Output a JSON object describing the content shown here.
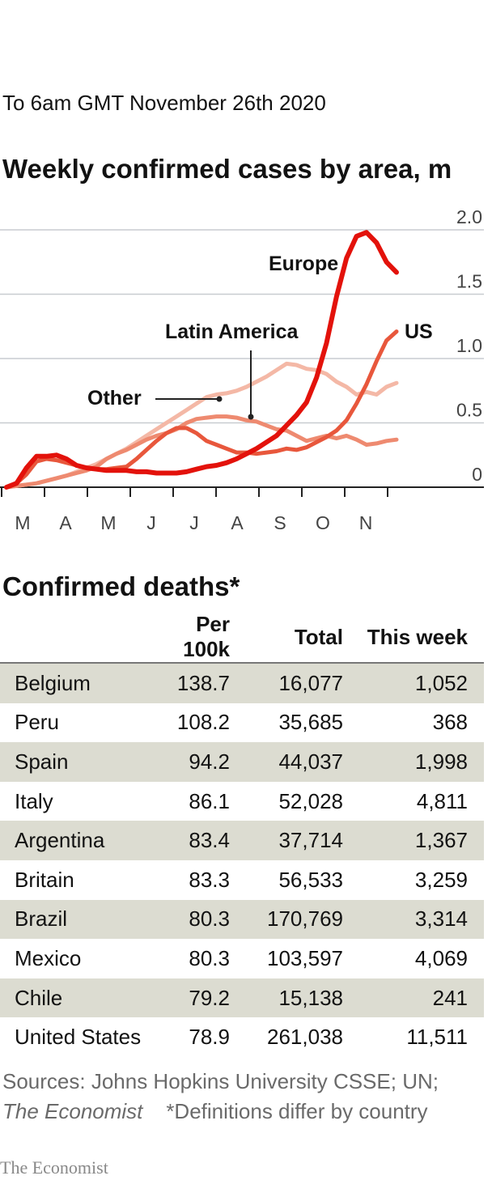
{
  "header": {
    "date": "To 6am GMT November 26th 2020"
  },
  "chart_data": {
    "type": "line",
    "title": "Weekly confirmed cases by area, m",
    "xlabel": "",
    "ylabel": "",
    "ylim": [
      0,
      2.0
    ],
    "yticks": [
      "0",
      "0.5",
      "1.0",
      "1.5",
      "2.0"
    ],
    "x_ticks": [
      "M",
      "A",
      "M",
      "J",
      "J",
      "A",
      "S",
      "O",
      "N"
    ],
    "grid": true,
    "week_index_start": 0,
    "series": [
      {
        "name": "Other",
        "color": "#f4b8a6",
        "values": [
          0.0,
          0.01,
          0.02,
          0.03,
          0.05,
          0.07,
          0.09,
          0.12,
          0.15,
          0.18,
          0.22,
          0.26,
          0.3,
          0.35,
          0.4,
          0.45,
          0.5,
          0.55,
          0.6,
          0.65,
          0.7,
          0.72,
          0.73,
          0.75,
          0.78,
          0.82,
          0.86,
          0.91,
          0.96,
          0.95,
          0.92,
          0.91,
          0.88,
          0.82,
          0.78,
          0.72,
          0.74,
          0.72,
          0.78,
          0.81
        ]
      },
      {
        "name": "Latin America",
        "color": "#ee8a70",
        "values": [
          0.0,
          0.01,
          0.02,
          0.03,
          0.05,
          0.07,
          0.09,
          0.11,
          0.13,
          0.16,
          0.22,
          0.26,
          0.29,
          0.33,
          0.37,
          0.4,
          0.42,
          0.45,
          0.5,
          0.53,
          0.54,
          0.55,
          0.55,
          0.54,
          0.52,
          0.51,
          0.48,
          0.45,
          0.44,
          0.4,
          0.36,
          0.38,
          0.4,
          0.38,
          0.4,
          0.37,
          0.33,
          0.34,
          0.36,
          0.37
        ]
      },
      {
        "name": "US",
        "color": "#e8573c",
        "values": [
          0.0,
          0.03,
          0.1,
          0.2,
          0.22,
          0.21,
          0.19,
          0.17,
          0.15,
          0.14,
          0.14,
          0.15,
          0.16,
          0.22,
          0.29,
          0.36,
          0.42,
          0.46,
          0.46,
          0.42,
          0.36,
          0.33,
          0.3,
          0.27,
          0.27,
          0.26,
          0.27,
          0.28,
          0.3,
          0.29,
          0.31,
          0.35,
          0.39,
          0.44,
          0.52,
          0.65,
          0.8,
          0.98,
          1.14,
          1.21
        ]
      },
      {
        "name": "Europe",
        "color": "#e3120b",
        "values": [
          0.0,
          0.03,
          0.15,
          0.24,
          0.24,
          0.25,
          0.22,
          0.17,
          0.15,
          0.14,
          0.13,
          0.13,
          0.13,
          0.12,
          0.12,
          0.11,
          0.11,
          0.11,
          0.12,
          0.14,
          0.16,
          0.17,
          0.19,
          0.22,
          0.26,
          0.3,
          0.35,
          0.4,
          0.48,
          0.56,
          0.66,
          0.85,
          1.12,
          1.48,
          1.78,
          1.95,
          1.98,
          1.9,
          1.75,
          1.67
        ]
      }
    ]
  },
  "deaths_table": {
    "title": "Confirmed deaths*",
    "columns": [
      "",
      "Per 100k",
      "Total",
      "This week"
    ],
    "rows": [
      {
        "country": "Belgium",
        "per100k": "138.7",
        "total": "16,077",
        "week": "1,052"
      },
      {
        "country": "Peru",
        "per100k": "108.2",
        "total": "35,685",
        "week": "368"
      },
      {
        "country": "Spain",
        "per100k": "94.2",
        "total": "44,037",
        "week": "1,998"
      },
      {
        "country": "Italy",
        "per100k": "86.1",
        "total": "52,028",
        "week": "4,811"
      },
      {
        "country": "Argentina",
        "per100k": "83.4",
        "total": "37,714",
        "week": "1,367"
      },
      {
        "country": "Britain",
        "per100k": "83.3",
        "total": "56,533",
        "week": "3,259"
      },
      {
        "country": "Brazil",
        "per100k": "80.3",
        "total": "170,769",
        "week": "3,314"
      },
      {
        "country": "Mexico",
        "per100k": "80.3",
        "total": "103,597",
        "week": "4,069"
      },
      {
        "country": "Chile",
        "per100k": "79.2",
        "total": "15,138",
        "week": "241"
      },
      {
        "country": "United States",
        "per100k": "78.9",
        "total": "261,038",
        "week": "11,511"
      }
    ]
  },
  "footer": {
    "sources": "Sources: Johns Hopkins University CSSE; UN;",
    "publication": "The Economist",
    "note": "*Definitions differ by country",
    "brand": "The Economist"
  }
}
